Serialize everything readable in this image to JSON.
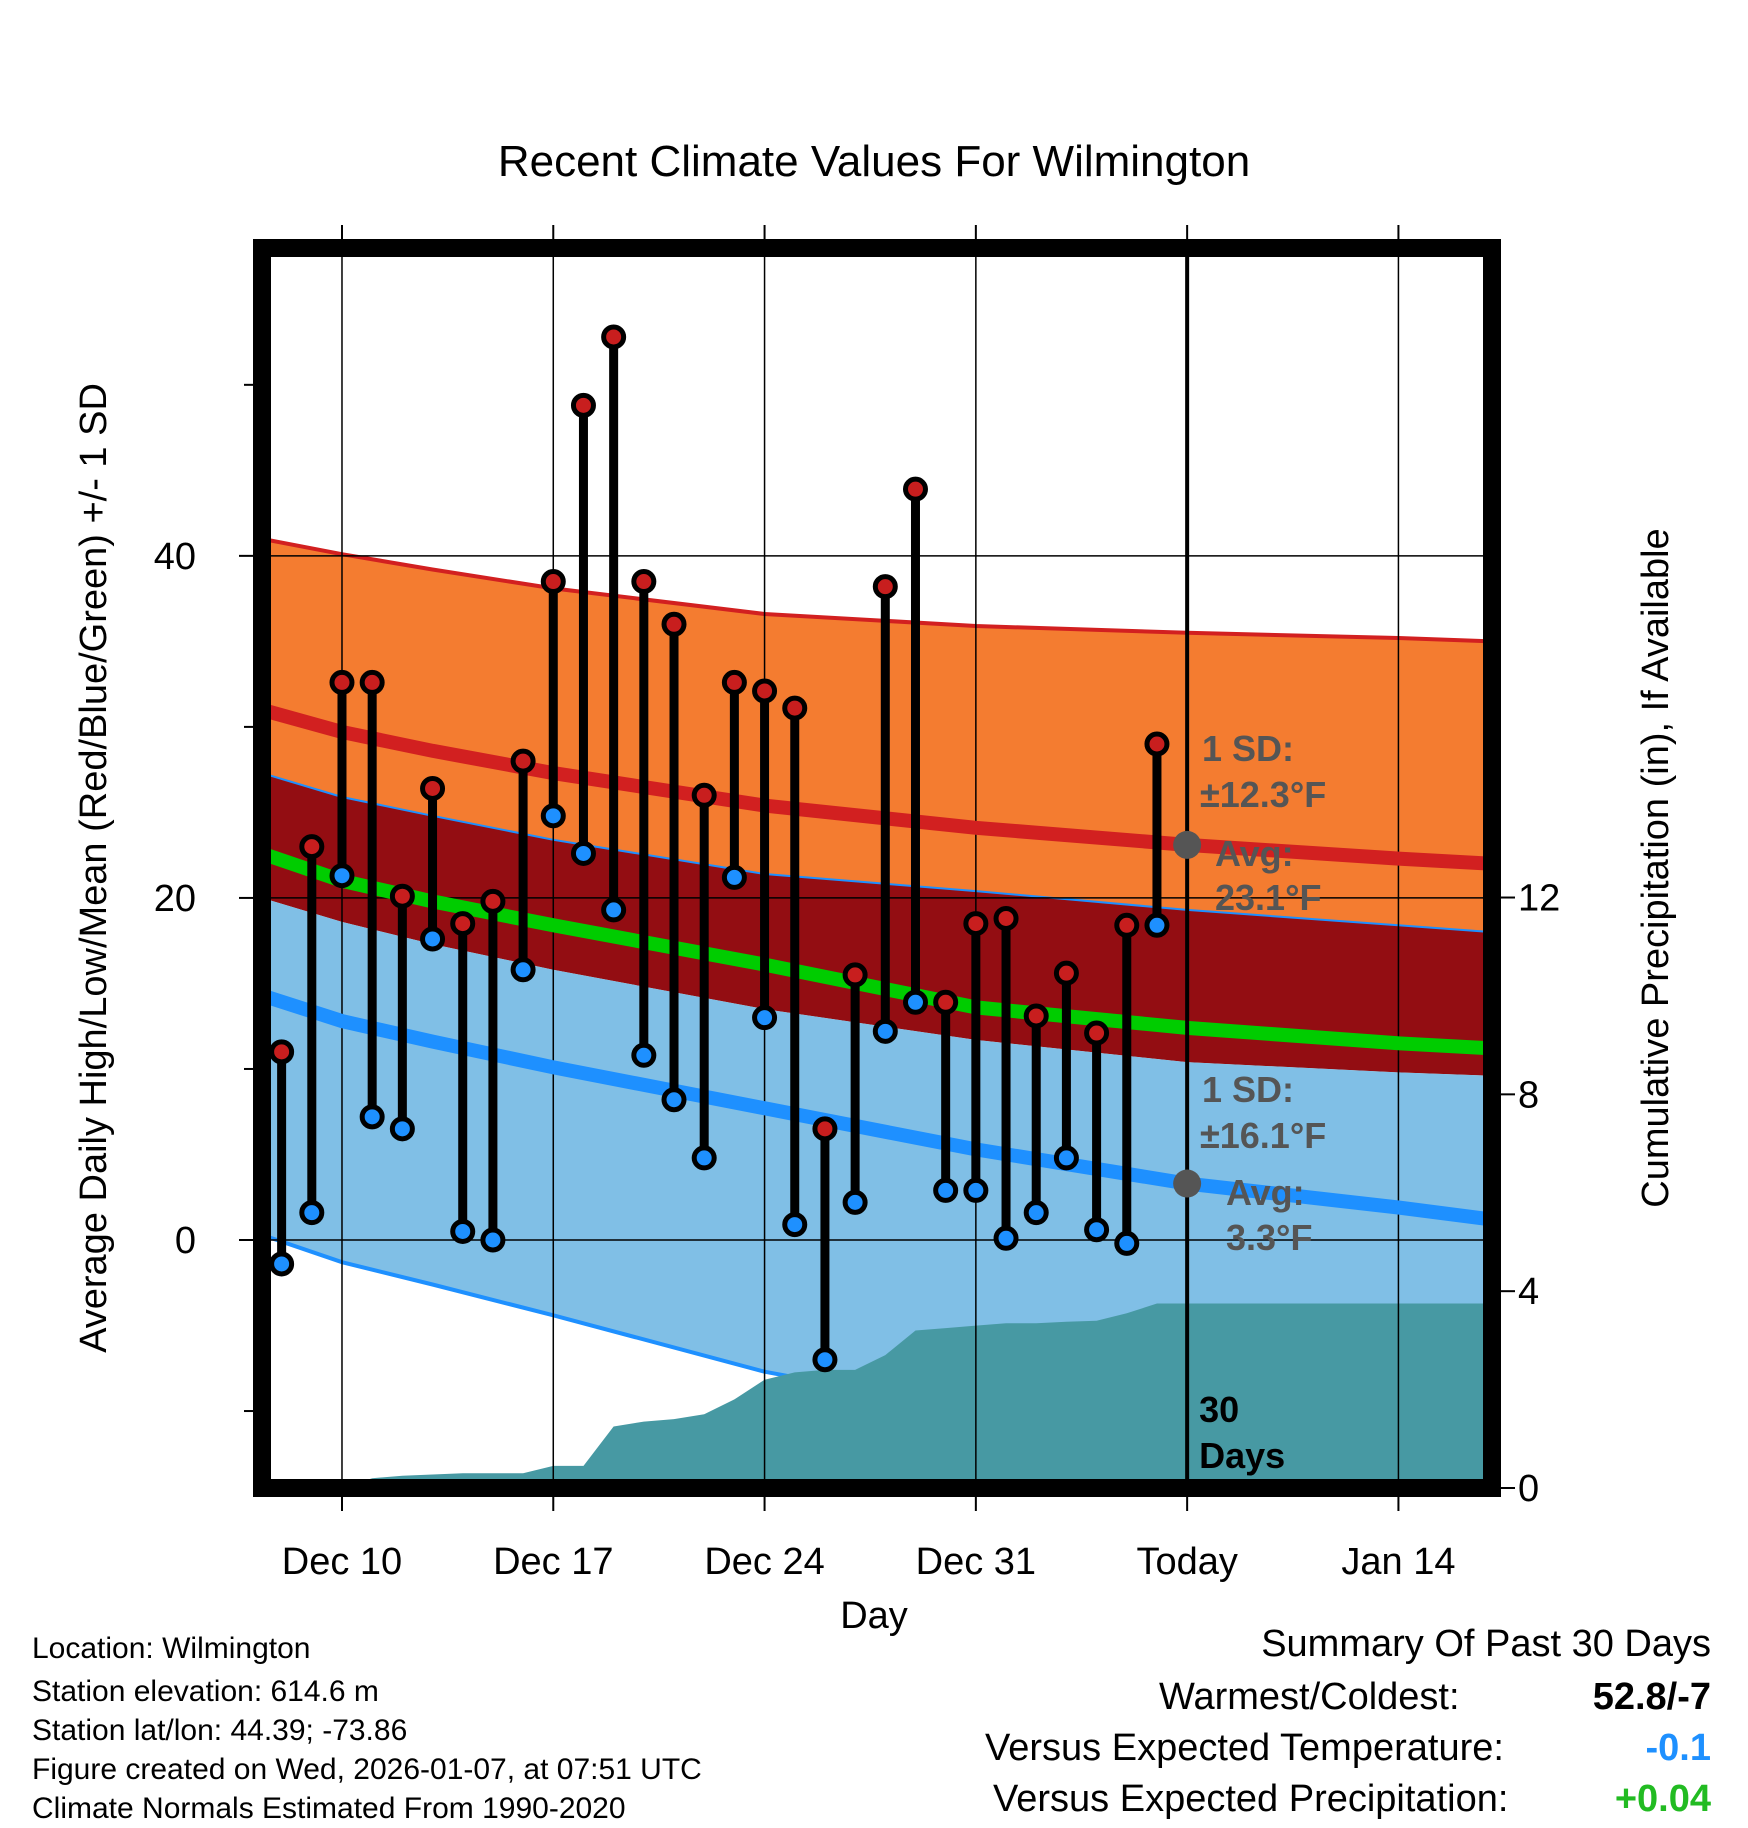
{
  "chart_data": {
    "type": "line",
    "title": "Recent Climate Values For Wilmington",
    "xlabel": "Day",
    "ylabel": "Average Daily High/Low/Mean (Red/Blue/Green) +/- 1 SD",
    "ylabel_right": "Cumulative Precipitation (in), If Available",
    "x_ticks": [
      {
        "label": "Dec 10",
        "day": 2
      },
      {
        "label": "Dec 17",
        "day": 9
      },
      {
        "label": "Dec 24",
        "day": 16
      },
      {
        "label": "Dec 31",
        "day": 23
      },
      {
        "label": "Today",
        "day": 30
      },
      {
        "label": "Jan 14",
        "day": 37
      }
    ],
    "xlim": [
      -0.65,
      40.1
    ],
    "ylim": [
      -14.5,
      58
    ],
    "y_ticks_major": [
      0,
      20,
      40
    ],
    "y_ticks_minor": [
      -10,
      10,
      30,
      50
    ],
    "y2lim": [
      0,
      25.2
    ],
    "y2_ticks": [
      0,
      4,
      8,
      12
    ],
    "today_day": 30,
    "today_label": "30 Days",
    "normals": {
      "days": [
        -0.65,
        2,
        5,
        9,
        16,
        23,
        30,
        37,
        40.1
      ],
      "high_plus_sd": [
        41,
        40.1,
        39.2,
        38.1,
        36.6,
        35.9,
        35.5,
        35.2,
        35.0
      ],
      "high": [
        31.0,
        29.7,
        28.6,
        27.3,
        25.4,
        24.1,
        23.1,
        22.3,
        22.0
      ],
      "high_minus_sd": [
        27.3,
        25.9,
        24.8,
        23.4,
        21.4,
        20.4,
        19.3,
        18.4,
        18.0
      ],
      "mean": [
        22.6,
        21.0,
        19.8,
        18.4,
        16.1,
        13.6,
        12.4,
        11.5,
        11.2
      ],
      "low_plus_sd": [
        20.0,
        18.6,
        17.3,
        15.8,
        13.5,
        11.7,
        10.4,
        9.8,
        9.6
      ],
      "low": [
        14.3,
        12.8,
        11.6,
        10.1,
        7.7,
        5.3,
        3.3,
        1.9,
        1.2
      ],
      "low_minus_sd": [
        0.3,
        -1.3,
        -2.6,
        -4.4,
        -7.7,
        -10.0,
        -12.0,
        -13.5,
        -14.2
      ]
    },
    "series": [
      {
        "name": "Daily High",
        "color": "#c81e1e",
        "values": [
          11,
          23,
          32.6,
          32.6,
          20.1,
          26.4,
          18.5,
          19.8,
          28,
          38.5,
          48.8,
          52.8,
          38.5,
          36,
          26,
          32.6,
          32.1,
          31.1,
          6.5,
          15.5,
          38.2,
          43.9,
          13.9,
          18.5,
          18.8,
          13.1,
          15.6,
          12.1,
          18.4,
          29
        ]
      },
      {
        "name": "Daily Low",
        "color": "#1e90ff",
        "values": [
          -1.4,
          1.6,
          21.3,
          7.2,
          6.5,
          17.6,
          0.5,
          0,
          15.8,
          24.8,
          22.6,
          19.3,
          10.8,
          8.2,
          4.8,
          21.2,
          13,
          0.9,
          -7,
          2.2,
          12.2,
          13.9,
          2.9,
          2.9,
          0.1,
          1.6,
          4.8,
          0.6,
          -0.2,
          18.4
        ]
      }
    ],
    "precip": {
      "name": "Cumulative Precipitation (in)",
      "days": [
        2,
        3,
        4,
        6,
        8,
        9,
        10,
        11,
        12,
        13,
        14,
        15,
        16,
        17,
        18,
        19,
        20,
        21,
        22,
        23,
        24,
        25,
        26,
        27,
        28,
        29,
        30,
        40.1
      ],
      "values": [
        0,
        0.2,
        0.25,
        0.3,
        0.3,
        0.45,
        0.45,
        1.25,
        1.35,
        1.4,
        1.5,
        1.8,
        2.2,
        2.35,
        2.4,
        2.4,
        2.7,
        3.2,
        3.25,
        3.3,
        3.35,
        3.35,
        3.38,
        3.4,
        3.55,
        3.75,
        3.75,
        3.75
      ]
    },
    "annotations": {
      "high_sd_label": "1 SD:",
      "high_sd_value": "±12.3°F",
      "high_avg_label": "Avg:",
      "high_avg_value": "23.1°F",
      "high_avg": 23.1,
      "low_sd_label": "1 SD:",
      "low_sd_value": "±16.1°F",
      "low_avg_label": "Avg:",
      "low_avg_value": "3.3°F",
      "low_avg": 3.3
    }
  },
  "colors": {
    "orange_band": "#f47c30",
    "dark_red_band": "#930d12",
    "light_blue_band": "#80bfe6",
    "green_mean": "#00cc00",
    "red_line": "#d22020",
    "blue_line": "#1e90ff",
    "precip_fill": "#4799a3",
    "annotation_gray": "#555555",
    "negative_value": "#1e90ff",
    "positive_value": "#22bb22"
  },
  "footer": {
    "location": "Location: Wilmington",
    "elevation": "Station elevation: 614.6 m",
    "latlon": "Station lat/lon: 44.39; -73.86",
    "created": "Figure created on Wed, 2026-01-07, at 07:51 UTC",
    "normals": "Climate Normals Estimated From 1990-2020"
  },
  "summary": {
    "title": "Summary Of Past 30 Days",
    "warm_cold_label": "Warmest/Coldest:",
    "warm_cold_value": "52.8/-7",
    "temp_label": "Versus Expected Temperature:",
    "temp_value": "-0.1",
    "precip_label": "Versus Expected Precipitation:",
    "precip_value": "+0.04"
  }
}
